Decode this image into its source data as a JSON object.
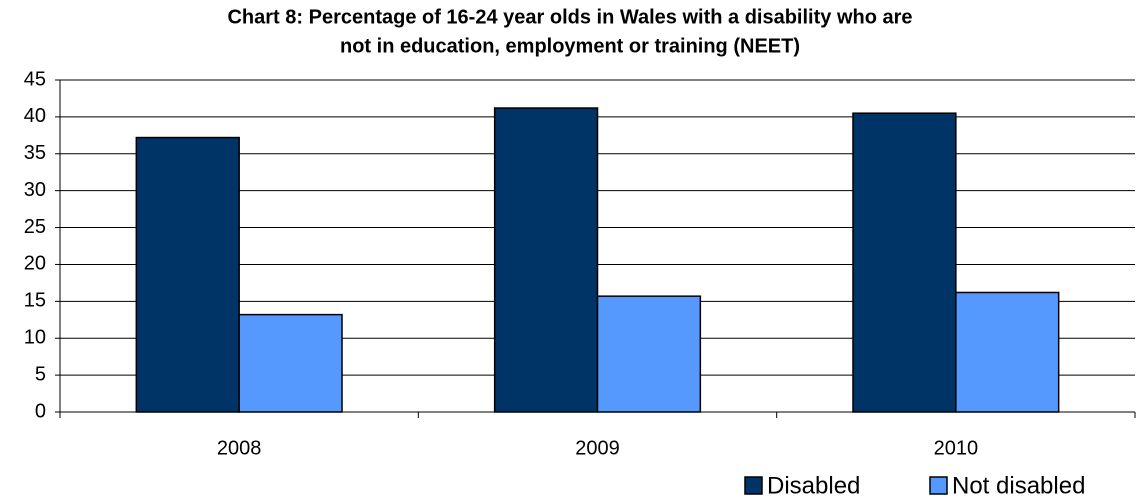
{
  "chart_data": {
    "type": "bar",
    "title": [
      "Chart 8: Percentage of 16-24 year olds in Wales with a disability who are",
      "not in education, employment or training (NEET)"
    ],
    "categories": [
      "2008",
      "2009",
      "2010"
    ],
    "series": [
      {
        "name": "Disabled",
        "color": "#003366",
        "values": [
          37.2,
          41.2,
          40.5
        ]
      },
      {
        "name": "Not disabled",
        "color": "#5599ff",
        "values": [
          13.2,
          15.7,
          16.2
        ]
      }
    ],
    "ylim": [
      0,
      45
    ],
    "yticks": [
      0,
      5,
      10,
      15,
      20,
      25,
      30,
      35,
      40,
      45
    ],
    "grid": true,
    "legend": "bottom-right"
  }
}
